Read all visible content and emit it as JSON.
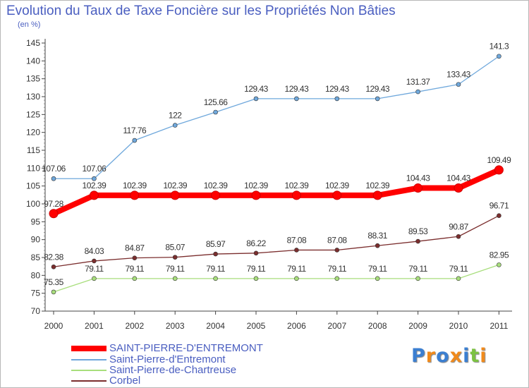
{
  "title": "Evolution du Taux de Taxe Foncière sur les Propriétés Non Bâties",
  "unit": "(en %)",
  "logo": "Proxiti",
  "chart_data": {
    "type": "line",
    "title": "Evolution du Taux de Taxe Foncière sur les Propriétés Non Bâties",
    "ylabel": "(en %)",
    "xlabel": "",
    "x": [
      "2000",
      "2001",
      "2002",
      "2003",
      "2004",
      "2005",
      "2006",
      "2007",
      "2008",
      "2009",
      "2010",
      "2011"
    ],
    "ylim": [
      70,
      145
    ],
    "yticks": [
      "70",
      "75",
      "80",
      "85",
      "90",
      "95",
      "100",
      "105",
      "110",
      "115",
      "120",
      "125",
      "130",
      "135",
      "140",
      "145"
    ],
    "grid": false,
    "legend": "bottom-left",
    "series": [
      {
        "name": "SAINT-PIERRE-D'ENTREMONT",
        "color": "#ff0000",
        "bold": true,
        "values": [
          97.28,
          102.39,
          102.39,
          102.39,
          102.39,
          102.39,
          102.39,
          102.39,
          102.39,
          104.43,
          104.43,
          109.49
        ],
        "labels": [
          "97.28",
          "102.39",
          "102.39",
          "102.39",
          "102.39",
          "102.39",
          "102.39",
          "102.39",
          "102.39",
          "104.43",
          "104.43",
          "109.49"
        ]
      },
      {
        "name": "Saint-Pierre-d'Entremont",
        "color": "#6fa8dc",
        "values": [
          107.06,
          107.06,
          117.76,
          122,
          125.66,
          129.43,
          129.43,
          129.43,
          129.43,
          131.37,
          133.43,
          141.3
        ],
        "labels": [
          "107.06",
          "107.06",
          "117.76",
          "122",
          "125.66",
          "129.43",
          "129.43",
          "129.43",
          "129.43",
          "131.37",
          "133.43",
          "141.3"
        ]
      },
      {
        "name": "Saint-Pierre-de-Chartreuse",
        "color": "#a8de7c",
        "values": [
          75.35,
          79.11,
          79.11,
          79.11,
          79.11,
          79.11,
          79.11,
          79.11,
          79.11,
          79.11,
          79.11,
          82.95
        ],
        "labels": [
          "75.35",
          "79.11",
          "79.11",
          "79.11",
          "79.11",
          "79.11",
          "79.11",
          "79.11",
          "79.11",
          "79.11",
          "79.11",
          "82.95"
        ]
      },
      {
        "name": "Corbel",
        "color": "#7b2e2e",
        "values": [
          82.38,
          84.03,
          84.87,
          85.07,
          85.97,
          86.22,
          87.08,
          87.08,
          88.31,
          89.53,
          90.87,
          96.71
        ],
        "labels": [
          "82.38",
          "84.03",
          "84.87",
          "85.07",
          "85.97",
          "86.22",
          "87.08",
          "87.08",
          "88.31",
          "89.53",
          "90.87",
          "96.71"
        ]
      }
    ]
  }
}
